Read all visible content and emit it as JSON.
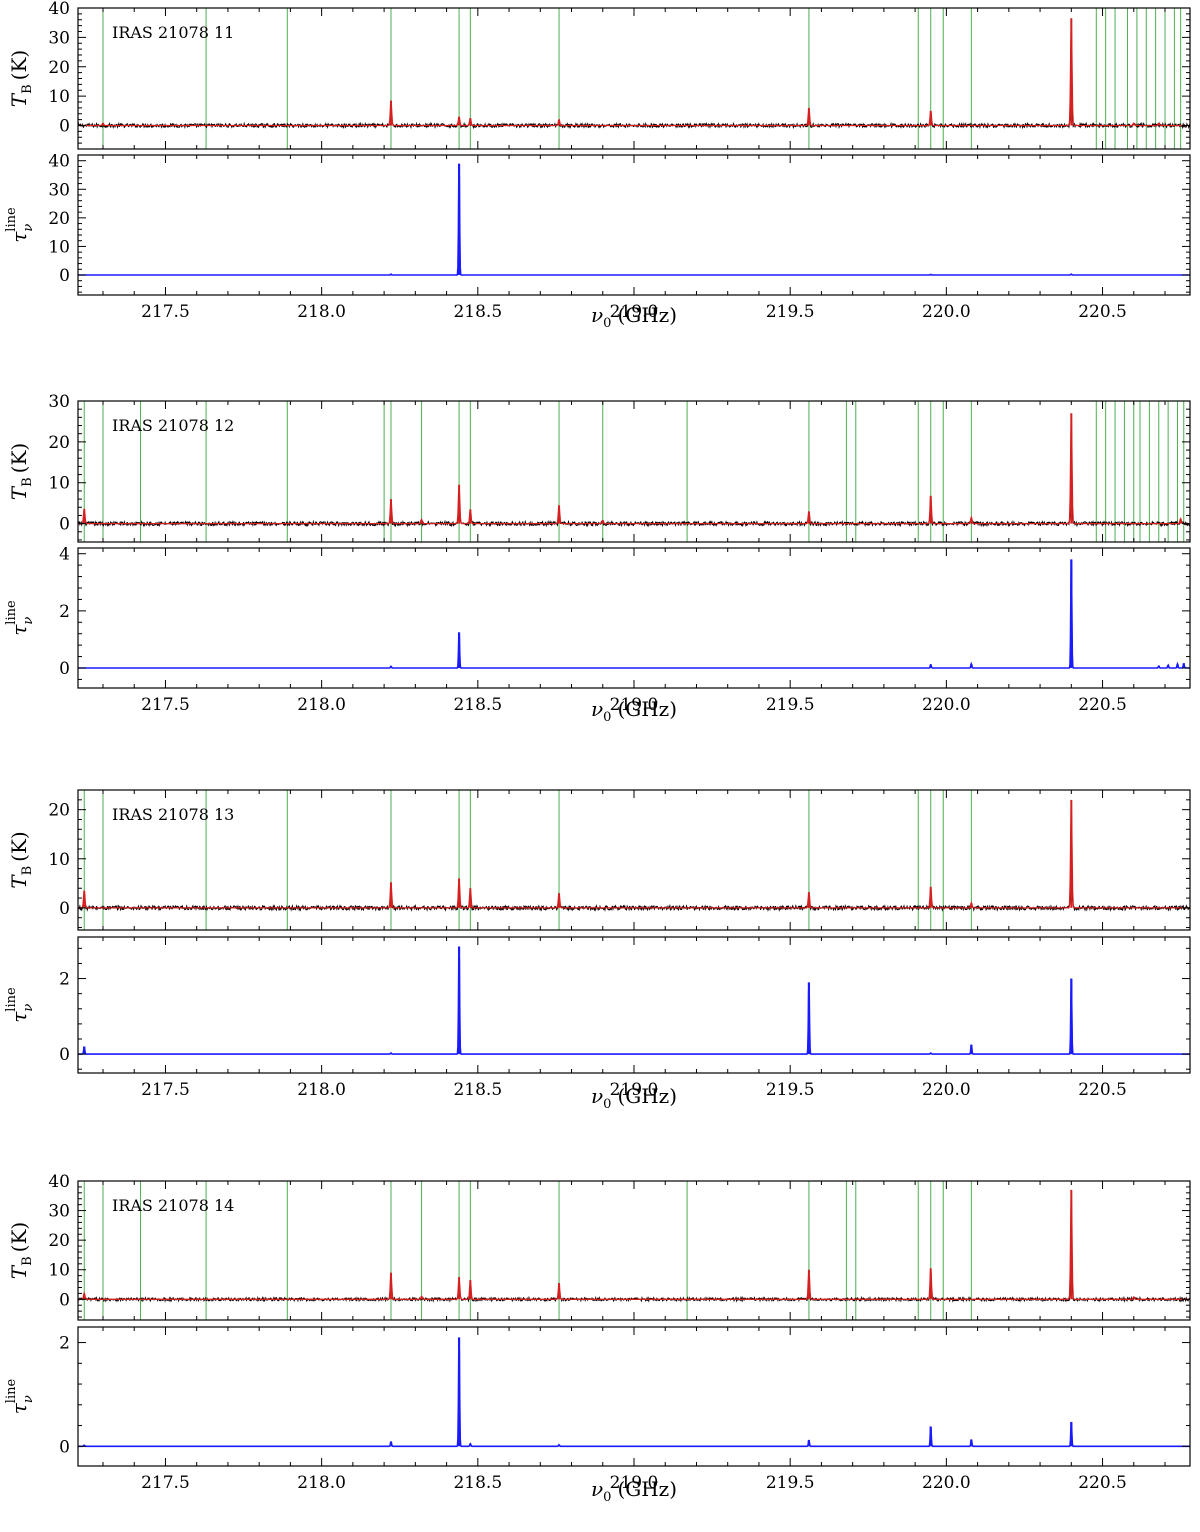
{
  "colors": {
    "observed": "#000000",
    "model": "#d62020",
    "opacity": "#1a1aff",
    "line_marker": "#4caf50",
    "axes": "#000000"
  },
  "labels": {
    "tb_main": "T",
    "tb_sub": "B",
    "tb_unit": "(K)",
    "tau_main": "τ",
    "tau_sub": "ν",
    "tau_sup": "line",
    "x_main": "ν",
    "x_sub": "0",
    "x_unit": "(GHz)"
  },
  "chart_data": [
    {
      "type": "line",
      "panel_label": "IRAS 21078 11",
      "xlim": [
        217.22,
        220.78
      ],
      "xticks": [
        217.5,
        218.0,
        218.5,
        219.0,
        219.5,
        220.0,
        220.5
      ],
      "xlabel": "ν0 (GHz)",
      "tb": {
        "ylabel": "TB (K)",
        "ylim": [
          -8,
          40
        ],
        "yticks": [
          0,
          10,
          20,
          30,
          40
        ],
        "peaks": [
          {
            "x": 217.3,
            "h": 0.8
          },
          {
            "x": 218.222,
            "h": 8.5
          },
          {
            "x": 218.44,
            "h": 3.0
          },
          {
            "x": 218.476,
            "h": 2.5
          },
          {
            "x": 218.76,
            "h": 2.0
          },
          {
            "x": 219.56,
            "h": 6.0
          },
          {
            "x": 219.95,
            "h": 5.0
          },
          {
            "x": 220.4,
            "h": 36.5
          },
          {
            "x": 220.6,
            "h": 0.8
          },
          {
            "x": 220.68,
            "h": 0.8
          }
        ],
        "noise": 0.6
      },
      "tau": {
        "ylabel": "τν line",
        "ylim": [
          -7,
          42
        ],
        "yticks": [
          0,
          10,
          20,
          30,
          40
        ],
        "peaks": [
          {
            "x": 218.222,
            "h": 0.3
          },
          {
            "x": 218.44,
            "h": 39.0
          },
          {
            "x": 219.95,
            "h": 0.2
          },
          {
            "x": 220.4,
            "h": 0.3
          }
        ]
      },
      "markers": [
        217.3,
        217.63,
        217.89,
        218.222,
        218.44,
        218.476,
        218.76,
        219.56,
        219.91,
        219.95,
        219.99,
        220.08,
        220.48,
        220.51,
        220.54,
        220.58,
        220.61,
        220.64,
        220.67,
        220.7,
        220.73,
        220.75
      ]
    },
    {
      "type": "line",
      "panel_label": "IRAS 21078 12",
      "xlim": [
        217.22,
        220.78
      ],
      "xticks": [
        217.5,
        218.0,
        218.5,
        219.0,
        219.5,
        220.0,
        220.5
      ],
      "xlabel": "ν0 (GHz)",
      "tb": {
        "ylabel": "TB (K)",
        "ylim": [
          -4.5,
          30
        ],
        "yticks": [
          0,
          10,
          20,
          30
        ],
        "peaks": [
          {
            "x": 217.24,
            "h": 3.6
          },
          {
            "x": 218.222,
            "h": 6.0
          },
          {
            "x": 218.32,
            "h": 1.0
          },
          {
            "x": 218.44,
            "h": 9.5
          },
          {
            "x": 218.476,
            "h": 3.5
          },
          {
            "x": 218.76,
            "h": 4.5
          },
          {
            "x": 218.9,
            "h": 0.8
          },
          {
            "x": 219.56,
            "h": 3.0
          },
          {
            "x": 219.95,
            "h": 6.8
          },
          {
            "x": 220.08,
            "h": 1.5
          },
          {
            "x": 220.4,
            "h": 27.0
          },
          {
            "x": 220.75,
            "h": 1.2
          }
        ],
        "noise": 0.45
      },
      "tau": {
        "ylabel": "τν line",
        "ylim": [
          -0.7,
          4.2
        ],
        "yticks": [
          0,
          2,
          4
        ],
        "peaks": [
          {
            "x": 218.222,
            "h": 0.06
          },
          {
            "x": 218.44,
            "h": 1.25
          },
          {
            "x": 219.95,
            "h": 0.12
          },
          {
            "x": 220.08,
            "h": 0.14
          },
          {
            "x": 220.4,
            "h": 3.8
          },
          {
            "x": 220.68,
            "h": 0.07
          },
          {
            "x": 220.71,
            "h": 0.1
          },
          {
            "x": 220.74,
            "h": 0.14
          },
          {
            "x": 220.76,
            "h": 0.16
          }
        ]
      },
      "markers": [
        217.24,
        217.3,
        217.42,
        217.63,
        217.89,
        218.2,
        218.222,
        218.32,
        218.44,
        218.476,
        218.76,
        218.9,
        219.17,
        219.56,
        219.68,
        219.71,
        219.91,
        219.95,
        219.99,
        220.08,
        220.48,
        220.51,
        220.54,
        220.57,
        220.6,
        220.62,
        220.65,
        220.68,
        220.71,
        220.74,
        220.76
      ]
    },
    {
      "type": "line",
      "panel_label": "IRAS 21078 13",
      "xlim": [
        217.22,
        220.78
      ],
      "xticks": [
        217.5,
        218.0,
        218.5,
        219.0,
        219.5,
        220.0,
        220.5
      ],
      "xlabel": "ν0 (GHz)",
      "tb": {
        "ylabel": "TB (K)",
        "ylim": [
          -4.5,
          24
        ],
        "yticks": [
          0,
          10,
          20
        ],
        "peaks": [
          {
            "x": 217.24,
            "h": 3.5
          },
          {
            "x": 218.222,
            "h": 5.2
          },
          {
            "x": 218.44,
            "h": 6.0
          },
          {
            "x": 218.476,
            "h": 4.0
          },
          {
            "x": 218.76,
            "h": 3.0
          },
          {
            "x": 219.56,
            "h": 3.2
          },
          {
            "x": 219.95,
            "h": 4.3
          },
          {
            "x": 220.08,
            "h": 1.0
          },
          {
            "x": 220.4,
            "h": 22.0
          }
        ],
        "noise": 0.4
      },
      "tau": {
        "ylabel": "τν line",
        "ylim": [
          -0.5,
          3.1
        ],
        "yticks": [
          0,
          2
        ],
        "peaks": [
          {
            "x": 217.24,
            "h": 0.2
          },
          {
            "x": 218.222,
            "h": 0.03
          },
          {
            "x": 218.44,
            "h": 2.85
          },
          {
            "x": 219.56,
            "h": 1.9
          },
          {
            "x": 219.95,
            "h": 0.03
          },
          {
            "x": 220.08,
            "h": 0.25
          },
          {
            "x": 220.4,
            "h": 2.0
          }
        ]
      },
      "markers": [
        217.24,
        217.3,
        217.63,
        217.89,
        218.222,
        218.44,
        218.476,
        218.76,
        219.56,
        219.91,
        219.95,
        219.99,
        220.08
      ]
    },
    {
      "type": "line",
      "panel_label": "IRAS 21078 14",
      "xlim": [
        217.22,
        220.78
      ],
      "xticks": [
        217.5,
        218.0,
        218.5,
        219.0,
        219.5,
        220.0,
        220.5
      ],
      "xlabel": "ν0 (GHz)",
      "tb": {
        "ylabel": "TB (K)",
        "ylim": [
          -7,
          40
        ],
        "yticks": [
          0,
          10,
          20,
          30,
          40
        ],
        "peaks": [
          {
            "x": 217.24,
            "h": 2.0
          },
          {
            "x": 218.222,
            "h": 9.0
          },
          {
            "x": 218.32,
            "h": 1.0
          },
          {
            "x": 218.44,
            "h": 7.5
          },
          {
            "x": 218.476,
            "h": 6.5
          },
          {
            "x": 218.76,
            "h": 5.5
          },
          {
            "x": 219.56,
            "h": 10.0
          },
          {
            "x": 219.95,
            "h": 10.5
          },
          {
            "x": 220.4,
            "h": 37.0
          },
          {
            "x": 220.6,
            "h": 0.8
          }
        ],
        "noise": 0.5
      },
      "tau": {
        "ylabel": "τν line",
        "ylim": [
          -0.38,
          2.3
        ],
        "yticks": [
          0,
          2
        ],
        "peaks": [
          {
            "x": 217.24,
            "h": 0.02
          },
          {
            "x": 218.222,
            "h": 0.09
          },
          {
            "x": 218.44,
            "h": 2.1
          },
          {
            "x": 218.476,
            "h": 0.05
          },
          {
            "x": 218.76,
            "h": 0.03
          },
          {
            "x": 219.56,
            "h": 0.12
          },
          {
            "x": 219.95,
            "h": 0.38
          },
          {
            "x": 220.08,
            "h": 0.13
          },
          {
            "x": 220.4,
            "h": 0.47
          }
        ]
      },
      "markers": [
        217.24,
        217.3,
        217.42,
        217.63,
        217.89,
        218.222,
        218.32,
        218.44,
        218.476,
        218.76,
        219.17,
        219.56,
        219.68,
        219.71,
        219.91,
        219.95,
        219.99,
        220.08
      ]
    }
  ]
}
